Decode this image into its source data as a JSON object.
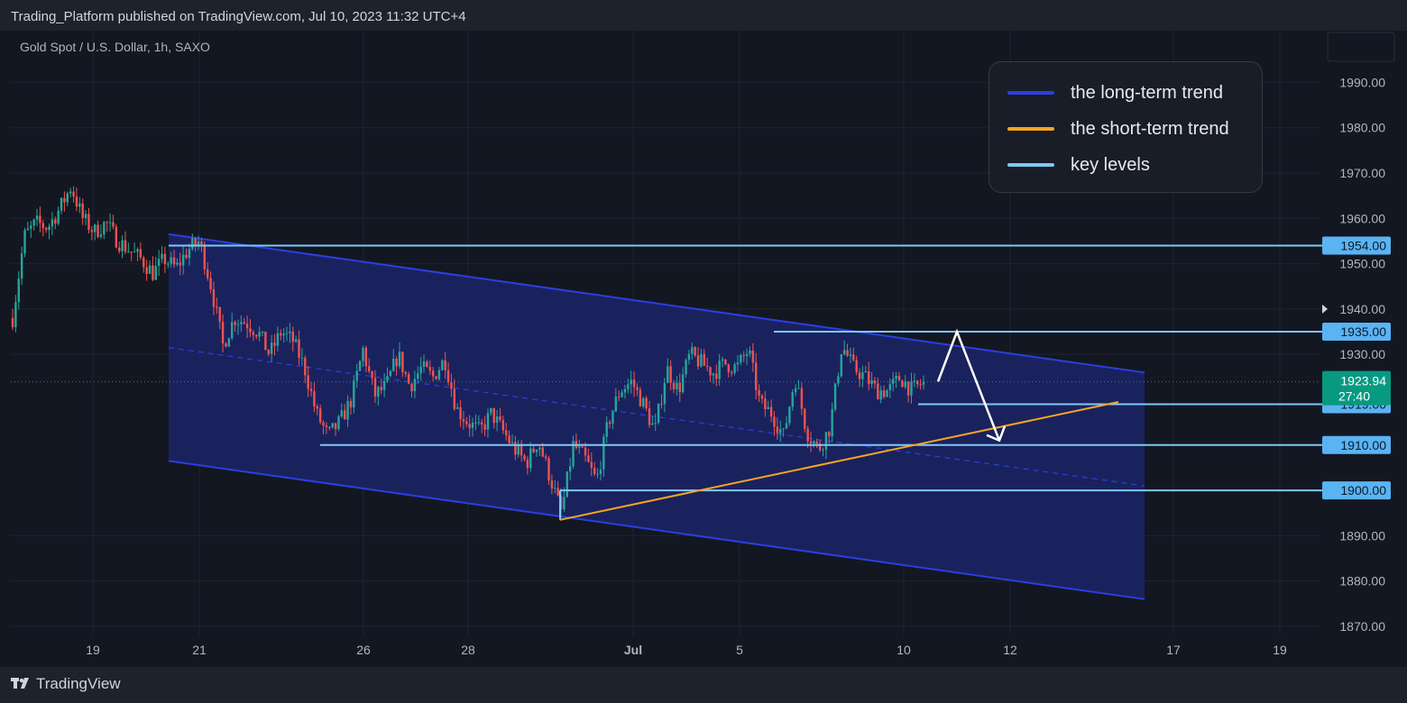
{
  "header": {
    "published_line": "Trading_Platform published on TradingView.com, Jul 10, 2023 11:32 UTC+4"
  },
  "chart_title": "Gold Spot / U.S. Dollar, 1h, SAXO",
  "footer": {
    "brand": "TradingView"
  },
  "colors": {
    "background": "#131722",
    "long_term": "#2b3fe0",
    "short_term": "#f5a623",
    "key_levels": "#7dc9f5",
    "channel_fill": "#1c2467",
    "candle_up": "#26a69a",
    "candle_down": "#ef5350",
    "current_price_badge": "#089981",
    "arrow": "#ffffff"
  },
  "legend": [
    {
      "label": "the long-term trend",
      "color": "#2b3fe0"
    },
    {
      "label": "the short-term trend",
      "color": "#f5a623"
    },
    {
      "label": "key levels",
      "color": "#7dc9f5"
    }
  ],
  "chart_data": {
    "type": "candlestick",
    "title": "Gold Spot / U.S. Dollar, 1h, SAXO",
    "y_axis": {
      "ticks": [
        "1990.00",
        "1980.00",
        "1970.00",
        "1960.00",
        "1950.00",
        "1940.00",
        "1930.00",
        "1890.00",
        "1880.00",
        "1870.00"
      ],
      "range": [
        1865,
        2000
      ],
      "position": "right"
    },
    "x_axis": {
      "ticks": [
        "19",
        "21",
        "26",
        "28",
        "Jul",
        "5",
        "10",
        "12",
        "17",
        "19"
      ]
    },
    "current_price": {
      "value": "1923.94",
      "countdown": "27:40"
    },
    "key_levels": [
      {
        "price": 1954.0,
        "label": "1954.00"
      },
      {
        "price": 1935.0,
        "label": "1935.00"
      },
      {
        "price": 1919.0,
        "label": "1919.00"
      },
      {
        "price": 1910.0,
        "label": "1910.00"
      },
      {
        "price": 1900.0,
        "label": "1900.00"
      }
    ],
    "long_term_channel": {
      "upper_start": 1956.5,
      "upper_end": 1926.0,
      "mid_start": 1931.5,
      "mid_end": 1901.0,
      "lower_start": 1906.5,
      "lower_end": 1876.0
    },
    "short_term_trend": {
      "start": 1893.5,
      "end": 1919.5
    },
    "projection_path": [
      1924.0,
      1935.0,
      1911.0
    ],
    "price_path": [
      1938,
      1956,
      1959,
      1958,
      1962,
      1967,
      1960,
      1957,
      1959,
      1955,
      1953,
      1951,
      1948,
      1951,
      1949,
      1953,
      1955,
      1945,
      1932,
      1938,
      1937,
      1935,
      1930,
      1935,
      1933,
      1927,
      1917,
      1912,
      1915,
      1920,
      1931,
      1921,
      1923,
      1930,
      1923,
      1927,
      1925,
      1929,
      1918,
      1915,
      1913,
      1917,
      1913,
      1909,
      1906,
      1911,
      1903,
      1895,
      1910,
      1907,
      1902,
      1915,
      1922,
      1924,
      1919,
      1913,
      1927,
      1922,
      1930,
      1928,
      1926,
      1928,
      1927,
      1931,
      1919,
      1917,
      1912,
      1925,
      1913,
      1909,
      1914,
      1932,
      1927,
      1925,
      1922,
      1922,
      1925,
      1922,
      1923.94
    ]
  }
}
